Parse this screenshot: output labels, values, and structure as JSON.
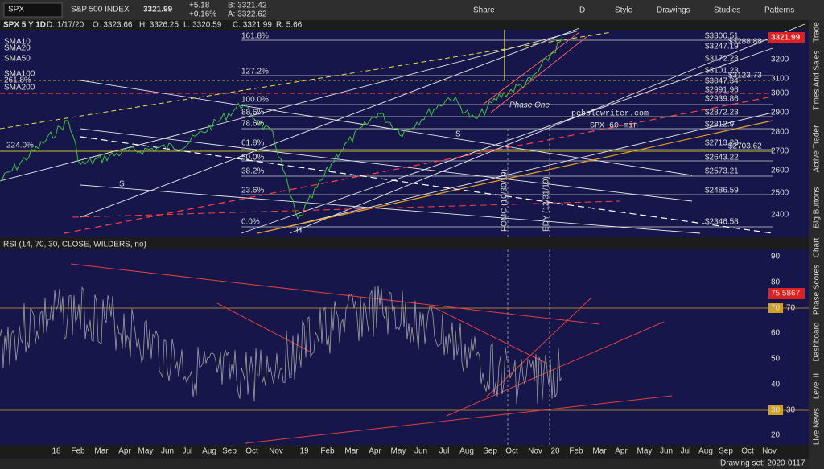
{
  "toolbar": {
    "symbol": "SPX",
    "description": "S&P 500 INDEX",
    "last": "3321.99",
    "change": "+5.18",
    "change_pct": "+0.16%",
    "bid": "B: 3321.42",
    "ask": "A: 3322.62",
    "buttons": [
      "Share",
      "D",
      "Style",
      "Drawings",
      "Studies",
      "Patterns"
    ]
  },
  "chart_header": {
    "symbol_period": "SPX 5 Y 1D",
    "fields": [
      "D: 1/17/20",
      "O: 3323.66",
      "H: 3326.25",
      "L: 3320.59",
      "C: 3321.99",
      "R: 5.66"
    ]
  },
  "studies": [
    "SMA10",
    "SMA20",
    "SMA50",
    "SMA100",
    "SMA200"
  ],
  "extension_labels": [
    "261.8%",
    "224.0%"
  ],
  "fib_labels": [
    "161.8%",
    "127.2%",
    "100.0%",
    "88.6%",
    "78.6%",
    "61.8%",
    "50.0%",
    "38.2%",
    "23.6%",
    "0.0%"
  ],
  "price_levels": [
    "$3306.51",
    "$3288.88",
    "$3247.19",
    "$3172.23",
    "$3123.73",
    "$3101.23",
    "$3047.34",
    "$2991.96",
    "$2939.86",
    "$2872.23",
    "$2812.9",
    "$2713.23",
    "$2703.62",
    "$2643.22",
    "$2573.21",
    "$2486.59",
    "$2346.58"
  ],
  "price_axis": [
    "3200",
    "3100",
    "3000",
    "2900",
    "2800",
    "2700",
    "2600",
    "2500",
    "2400"
  ],
  "last_price_tag": "3321.99",
  "annotations": {
    "site": "pebblewriter.com",
    "timeframe": "SPX  60-min",
    "phase": "Phase One",
    "s1": "S",
    "s2": "S",
    "h": "H",
    "fomc": "FOMC (10/30/19)",
    "edy": "EDY (12/31/19)"
  },
  "rsi": {
    "label": "RSI (14, 70, 30, CLOSE, WILDERS, no)",
    "value": "75.5867",
    "lower": "30",
    "upper": "70",
    "axis": [
      "90",
      "80",
      "70",
      "60",
      "50",
      "40",
      "30",
      "20"
    ]
  },
  "time_axis": [
    "18",
    "Feb",
    "Mar",
    "Apr",
    "May",
    "Jun",
    "Jul",
    "Aug",
    "Sep",
    "Oct",
    "Nov",
    "19",
    "Feb",
    "Mar",
    "Apr",
    "May",
    "Jun",
    "Jul",
    "Aug",
    "Sep",
    "Oct",
    "Nov",
    "20",
    "Feb",
    "Mar",
    "Apr",
    "May",
    "Jun",
    "Jul",
    "Aug",
    "Sep",
    "Oct",
    "Nov"
  ],
  "side_tabs": [
    "Trade",
    "Times And Sales",
    "Active Trader",
    "Big Buttons",
    "Chart",
    "Phase Scores",
    "Dashboard",
    "Level II",
    "Live News"
  ],
  "status": "Drawing set: 2020-0117"
}
